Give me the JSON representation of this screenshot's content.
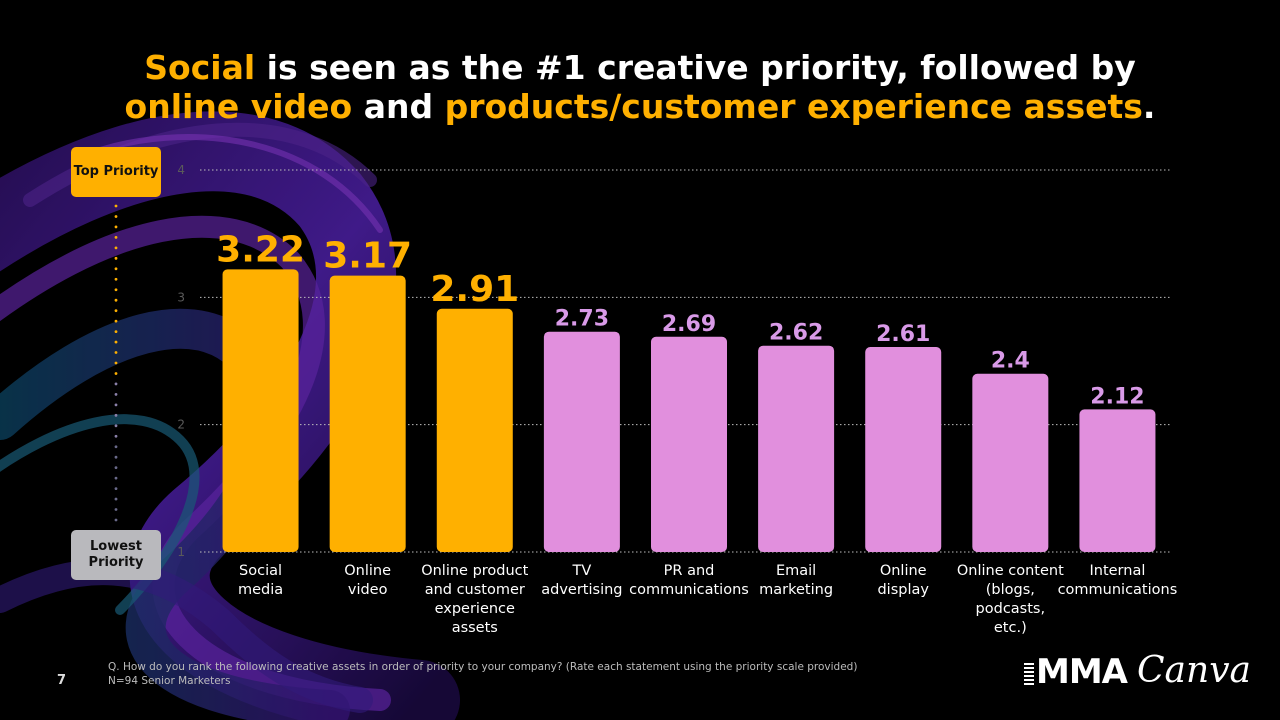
{
  "title": {
    "part1_hl": "Social",
    "part2": " is seen as the #1 creative priority, followed by",
    "part3_hl": "online video",
    "part4": " and ",
    "part5_hl": "products/customer experience assets",
    "part6": "."
  },
  "priority_scale": {
    "top": "Top Priority",
    "lowest": "Lowest Priority"
  },
  "chart_data": {
    "type": "bar",
    "title": "",
    "xlabel": "",
    "ylabel": "",
    "ylim": [
      1,
      4
    ],
    "yticks": [
      1,
      2,
      3,
      4
    ],
    "grid": true,
    "categories": [
      [
        "Social",
        "media"
      ],
      [
        "Online",
        "video"
      ],
      [
        "Online product",
        "and customer",
        "experience",
        "assets"
      ],
      [
        "TV",
        "advertising"
      ],
      [
        "PR and",
        "communications"
      ],
      [
        "Email",
        "marketing"
      ],
      [
        "Online",
        "display"
      ],
      [
        "Online content",
        "(blogs,",
        "podcasts,",
        "etc.)"
      ],
      [
        "Internal",
        "communications"
      ]
    ],
    "values": [
      3.22,
      3.17,
      2.91,
      2.73,
      2.69,
      2.62,
      2.61,
      2.4,
      2.12
    ],
    "labels": [
      "3.22",
      "3.17",
      "2.91",
      "2.73",
      "2.69",
      "2.62",
      "2.61",
      "2.4",
      "2.12"
    ],
    "highlight_count": 3,
    "colors": {
      "highlight": "#FFB000",
      "other_bar": "#E18FDD",
      "other_label": "#D99AE8",
      "tick": "#5A5A5A",
      "grid": "#BDBDBD"
    }
  },
  "footnote": {
    "question": "Q. How do you rank the following creative assets in order of priority to your company? (Rate each statement using the priority scale provided)",
    "sample": "N=94 Senior Marketers"
  },
  "page_number": "7",
  "logos": {
    "mma": "MMA",
    "canva": "Canva"
  }
}
